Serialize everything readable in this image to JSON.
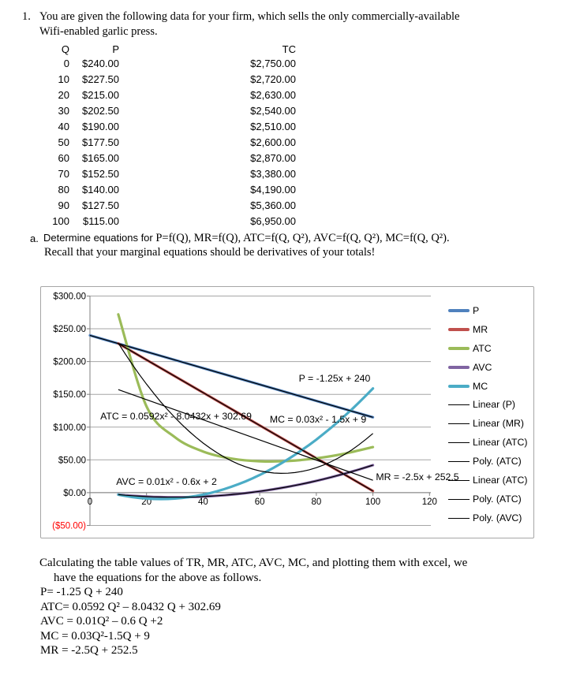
{
  "question": {
    "number": "1.",
    "line1": "You are given the following data for your firm, which sells the only commercially-available",
    "line2": "Wifi-enabled garlic press."
  },
  "table": {
    "headers": [
      "Q",
      "P",
      "TC"
    ],
    "rows": [
      [
        "0",
        "$240.00",
        "$2,750.00"
      ],
      [
        "10",
        "$227.50",
        "$2,720.00"
      ],
      [
        "20",
        "$215.00",
        "$2,630.00"
      ],
      [
        "30",
        "$202.50",
        "$2,540.00"
      ],
      [
        "40",
        "$190.00",
        "$2,510.00"
      ],
      [
        "50",
        "$177.50",
        "$2,600.00"
      ],
      [
        "60",
        "$165.00",
        "$2,870.00"
      ],
      [
        "70",
        "$152.50",
        "$3,380.00"
      ],
      [
        "80",
        "$140.00",
        "$4,190.00"
      ],
      [
        "90",
        "$127.50",
        "$5,360.00"
      ],
      [
        "100",
        "$115.00",
        "$6,950.00"
      ]
    ]
  },
  "part_a": {
    "label": "a.",
    "lead": "Determine equations for ",
    "equations": "P=f(Q), MR=f(Q), ATC=f(Q, Q²), AVC=f(Q, Q²), MC=f(Q, Q²).",
    "line2": "Recall that your marginal equations should be derivatives of your totals!"
  },
  "chart_data": {
    "type": "line",
    "title": "",
    "xlabel": "",
    "ylabel": "",
    "xlim": [
      0,
      120
    ],
    "ylim": [
      -50,
      300
    ],
    "grid": "horizontal",
    "legend_position": "right",
    "x_ticks": [
      0,
      20,
      40,
      60,
      80,
      100,
      120
    ],
    "y_tick_labels": [
      "$300.00",
      "$250.00",
      "$200.00",
      "$150.00",
      "$100.00",
      "$50.00",
      "$0.00",
      "($50.00)"
    ],
    "y_tick_values": [
      300,
      250,
      200,
      150,
      100,
      50,
      0,
      -50
    ],
    "negative_label_color": "#ff0000",
    "series": [
      {
        "name": "P",
        "color": "#4f81bd",
        "kind": "line",
        "x": [
          0,
          100
        ],
        "y": [
          240,
          115
        ]
      },
      {
        "name": "MR",
        "color": "#c0504d",
        "kind": "line",
        "x": [
          10,
          100
        ],
        "y": [
          227.5,
          2.5
        ]
      },
      {
        "name": "ATC",
        "color": "#9bbb59",
        "kind": "smooth",
        "x": [
          10,
          20,
          30,
          40,
          50,
          60,
          70,
          80,
          90,
          100
        ],
        "y": [
          272,
          131.5,
          84.67,
          62.75,
          52,
          47.83,
          48.29,
          52.38,
          59.56,
          69.5
        ]
      },
      {
        "name": "AVC",
        "color": "#8064a2",
        "kind": "quad",
        "coef": [
          0.01,
          -0.6,
          2
        ],
        "range": [
          10,
          100
        ],
        "x": [
          10,
          20,
          30,
          40,
          50,
          60,
          70,
          80,
          90,
          100
        ],
        "y": [
          -3,
          -6,
          -7,
          -6,
          -3,
          2,
          9,
          18,
          29,
          42
        ]
      },
      {
        "name": "MC",
        "color": "#4bacc6",
        "kind": "quad",
        "coef": [
          0.03,
          -1.5,
          9
        ],
        "range": [
          10,
          100
        ],
        "x": [
          10,
          20,
          30,
          40,
          50,
          60,
          70,
          80,
          90,
          100
        ],
        "y": [
          -3,
          -9,
          -9,
          -3,
          9,
          27,
          51,
          81,
          117,
          159
        ]
      }
    ],
    "trendlines": [
      {
        "name": "Linear (P)",
        "kind": "line",
        "x": [
          0,
          100
        ],
        "y": [
          240,
          115
        ]
      },
      {
        "name": "Linear (MR)",
        "kind": "line",
        "x": [
          10,
          100
        ],
        "y": [
          227.5,
          2.5
        ]
      },
      {
        "name": "Linear (ATC)",
        "kind": "line",
        "x": [
          10,
          100
        ],
        "y": [
          157.2,
          18.9
        ]
      },
      {
        "name": "Poly. (ATC)",
        "kind": "quad",
        "coef": [
          0.0592,
          -8.0432,
          302.69
        ],
        "range": [
          10,
          100
        ]
      },
      {
        "name": "Poly. (AVC)",
        "kind": "quad",
        "coef": [
          0.01,
          -0.6,
          2
        ],
        "range": [
          10,
          100
        ]
      }
    ],
    "legend": [
      {
        "label": "P",
        "color": "#4f81bd",
        "thick": true
      },
      {
        "label": "MR",
        "color": "#c0504d",
        "thick": true
      },
      {
        "label": "ATC",
        "color": "#9bbb59",
        "thick": true
      },
      {
        "label": "AVC",
        "color": "#8064a2",
        "thick": true
      },
      {
        "label": "MC",
        "color": "#4bacc6",
        "thick": true
      },
      {
        "label": "Linear (P)",
        "color": "#000000",
        "thick": false
      },
      {
        "label": "Linear (MR)",
        "color": "#000000",
        "thick": false
      },
      {
        "label": "Linear (ATC)",
        "color": "#000000",
        "thick": false
      },
      {
        "label": "Poly. (ATC)",
        "color": "#000000",
        "thick": false
      },
      {
        "label": "Linear (ATC)",
        "color": "#000000",
        "thick": false
      },
      {
        "label": "Poly. (ATC)",
        "color": "#000000",
        "thick": false
      },
      {
        "label": "Poly. (AVC)",
        "color": "#000000",
        "thick": false
      }
    ],
    "annotations": [
      "P = -1.25x + 240",
      "ATC = 0.0592x² - 8.0432x + 302.69",
      "MC = 0.03x² - 1.5x + 9",
      "AVC = 0.01x² - 0.6x + 2",
      "MR = -2.5x + 252.5"
    ]
  },
  "bottom": {
    "line1": "Calculating the table values of TR, MR, ATC, AVC, MC, and plotting them with excel, we",
    "line2": "have the equations for the above as follows.",
    "equations": [
      "P= -1.25 Q + 240",
      "ATC= 0.0592 Q² – 8.0432 Q + 302.69",
      "AVC = 0.01Q² – 0.6 Q +2",
      "MC = 0.03Q²-1.5Q + 9",
      "MR = -2.5Q + 252.5"
    ]
  }
}
